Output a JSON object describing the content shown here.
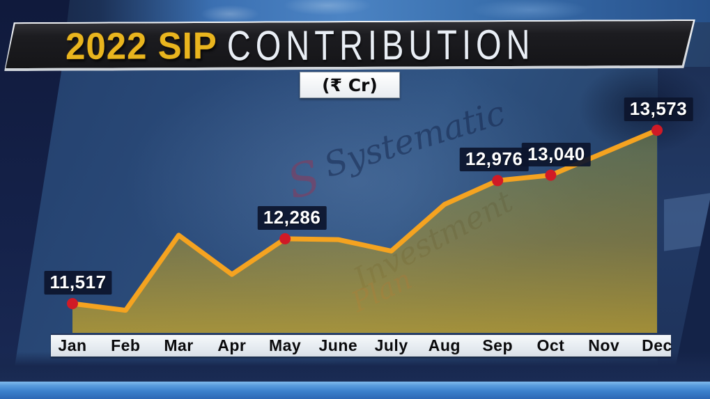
{
  "header": {
    "title_highlight": "2022 SIP",
    "title_rest": "CONTRIBUTION",
    "unit_label": "(₹ Cr)"
  },
  "chart_data": {
    "type": "line",
    "title": "2022 SIP Contribution",
    "unit": "₹ Cr",
    "categories": [
      "Jan",
      "Feb",
      "Mar",
      "Apr",
      "May",
      "June",
      "July",
      "Aug",
      "Sep",
      "Oct",
      "Nov",
      "Dec"
    ],
    "values": [
      11517,
      11438,
      12328,
      11863,
      12286,
      12276,
      12140,
      12693,
      12976,
      13040,
      13306,
      13573
    ],
    "labeled_points": [
      {
        "month": "Jan",
        "value": 11517,
        "label": "11,517"
      },
      {
        "month": "May",
        "value": 12286,
        "label": "12,286"
      },
      {
        "month": "Sep",
        "value": 12976,
        "label": "12,976"
      },
      {
        "month": "Oct",
        "value": 13040,
        "label": "13,040"
      },
      {
        "month": "Dec",
        "value": 13573,
        "label": "13,573"
      }
    ],
    "ylim": [
      11200,
      13800
    ],
    "grid": false,
    "legend": false,
    "line_color": "#f5a320",
    "marker_color": "#d01a26",
    "area_fill": "yellow-olive gradient",
    "xlabel": "",
    "ylabel": ""
  },
  "background": {
    "watermarks": [
      {
        "text": "Systematic",
        "tone": "gray"
      },
      {
        "text": "Investment",
        "tone": "gray"
      },
      {
        "text": "Plan",
        "tone": "red"
      },
      {
        "text": "S",
        "tone": "red"
      }
    ]
  },
  "colors": {
    "accent_gold": "#e9b51e",
    "title_silver": "#e9eef5",
    "banner_black": "#1a1a1d",
    "line_orange": "#f5a320",
    "marker_red": "#d01a26",
    "axis_strip_bg": "#eef2f6",
    "callout_bg": "#0c152c",
    "bottom_band_blue": "#3b80cc",
    "background_blue": "#2c4d7c"
  }
}
